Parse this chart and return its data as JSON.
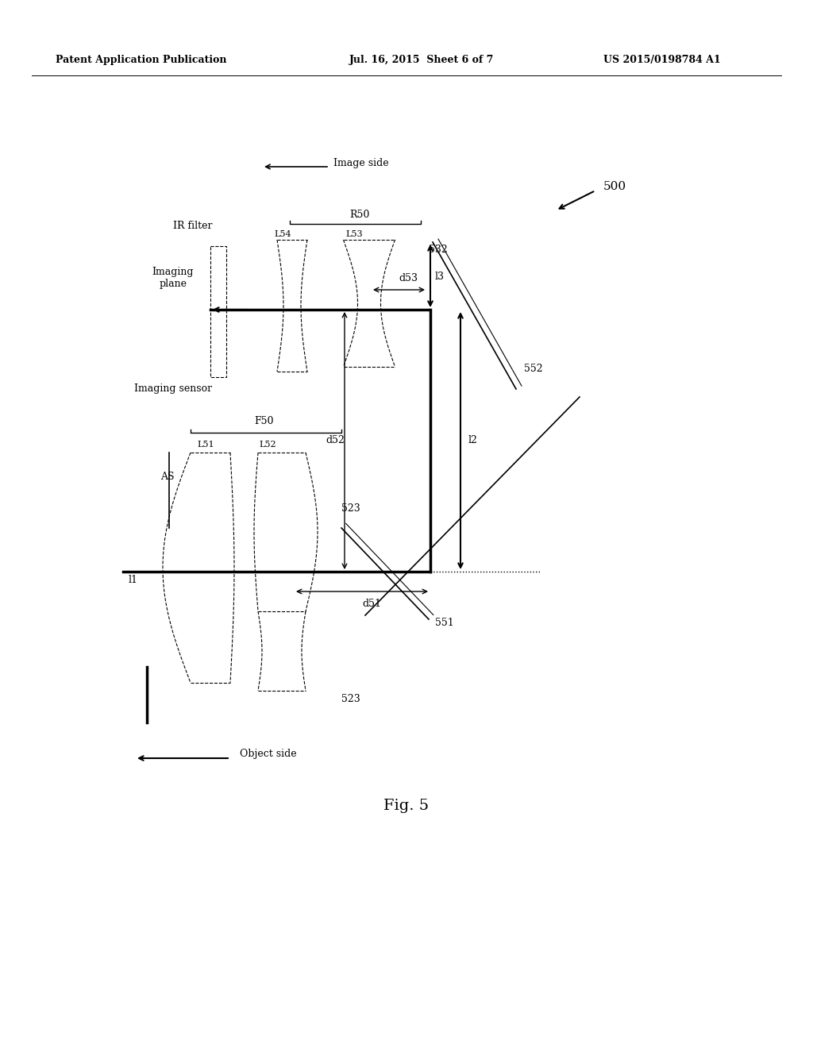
{
  "title_left": "Patent Application Publication",
  "title_center": "Jul. 16, 2015  Sheet 6 of 7",
  "title_right": "US 2015/0198784 A1",
  "fig_label": "Fig. 5",
  "fig_number": "500",
  "background": "#ffffff",
  "text_color": "#000000",
  "labels": {
    "image_side": "Image side",
    "object_side": "Object side",
    "ir_filter": "IR filter",
    "imaging_plane": "Imaging\nplane",
    "imaging_sensor": "Imaging sensor",
    "R50": "R50",
    "F50": "F50",
    "L51": "L51",
    "L52": "L52",
    "L53": "L53",
    "L54": "L54",
    "AS": "AS",
    "d51": "d51",
    "d52": "d52",
    "d53": "d53",
    "l1": "l1",
    "l2": "l2",
    "l3": "l3",
    "532": "532",
    "523_top": "523",
    "523_bot": "523",
    "551": "551",
    "552": "552"
  }
}
